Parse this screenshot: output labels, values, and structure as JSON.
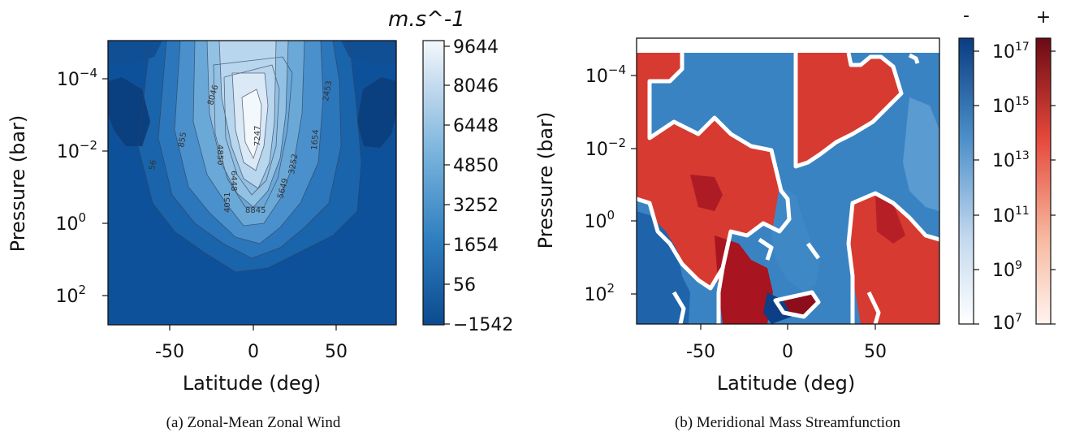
{
  "chart_data": [
    {
      "type": "contour",
      "caption": "(a) Zonal-Mean Zonal Wind",
      "xlabel": "Latitude (deg)",
      "ylabel": "Pressure (bar)",
      "x_ticks": [
        -50,
        0,
        50
      ],
      "y_ticks_exp": [
        -4,
        -2,
        0,
        2
      ],
      "xlim": [
        -87,
        87
      ],
      "ylim_exp": [
        3,
        -5.4
      ],
      "colorbar_unit": "m.s^-1",
      "colorbar_ticks": [
        "9644",
        "8046",
        "6448",
        "4850",
        "3252",
        "1654",
        "56",
        "−1542"
      ],
      "contour_labels": [
        "8046",
        "4850",
        "6448",
        "7247",
        "855",
        "56",
        "1654",
        "2453",
        "3252",
        "5649",
        "4051",
        "8845"
      ]
    },
    {
      "type": "contour",
      "caption": "(b) Meridional Mass Streamfunction",
      "xlabel": "Latitude (deg)",
      "ylabel": "Pressure (bar)",
      "x_ticks": [
        -50,
        0,
        50
      ],
      "y_ticks_exp": [
        -4,
        -2,
        0,
        2
      ],
      "xlim": [
        -87,
        87
      ],
      "ylim_exp": [
        3,
        -5.4
      ],
      "colorbar_neg_label": "-",
      "colorbar_pos_label": "+",
      "colorbar_ticks_exp": [
        17,
        15,
        13,
        11,
        9,
        7
      ]
    }
  ]
}
